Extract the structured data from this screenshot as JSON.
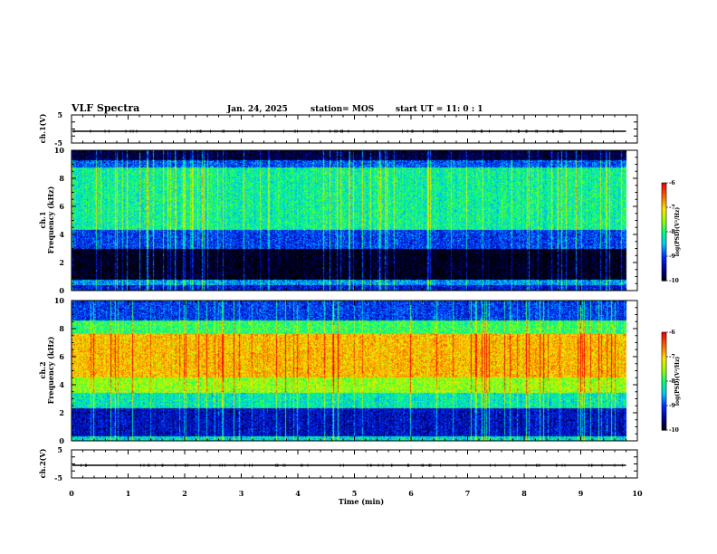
{
  "header": {
    "title": "VLF Spectra",
    "date": "Jan. 24, 2025",
    "station": "station= MOS",
    "start": "start  UT  =   11: 0  : 1"
  },
  "chart_data": [
    {
      "type": "line",
      "name": "ch1-voltage",
      "ylabel": "ch.1(V)",
      "ylim": [
        -5,
        5
      ],
      "yticks": [
        5,
        -5
      ],
      "xlim": [
        0,
        10
      ],
      "trace_level": -0.8,
      "trace_end_min": 9.8
    },
    {
      "type": "heatmap",
      "name": "ch1-spectrogram",
      "ylabel": "ch.1\nFrequency (kHz)",
      "ylabel_line1": "ch.1",
      "ylabel_line2": "Frequency (kHz)",
      "ylim": [
        0,
        10
      ],
      "yticks": [
        0,
        2,
        4,
        6,
        8,
        10
      ],
      "xlim": [
        0,
        10
      ],
      "data_end_min": 9.8,
      "bands": [
        {
          "from": 0,
          "to": 0.4,
          "level": -9.2
        },
        {
          "from": 0.4,
          "to": 0.8,
          "level": -8.6
        },
        {
          "from": 0.8,
          "to": 3.0,
          "level": -10.0
        },
        {
          "from": 3.0,
          "to": 4.3,
          "level": -9.0
        },
        {
          "from": 4.3,
          "to": 8.8,
          "level": -8.1
        },
        {
          "from": 8.8,
          "to": 9.3,
          "level": -8.9
        },
        {
          "from": 9.3,
          "to": 10.0,
          "level": -9.8
        }
      ],
      "colorbar": {
        "label": "log(PSD)(V²/Hz)",
        "min": -10,
        "max": -6,
        "ticks": [
          "-6",
          "-7",
          "-8",
          "-9",
          "-10"
        ]
      }
    },
    {
      "type": "heatmap",
      "name": "ch2-spectrogram",
      "ylabel": "ch.2\nFrequency (kHz)",
      "ylabel_line1": "ch.2",
      "ylabel_line2": "Frequency (kHz)",
      "ylim": [
        0,
        10
      ],
      "yticks": [
        0,
        2,
        4,
        6,
        8,
        10
      ],
      "xlim": [
        0,
        10
      ],
      "data_end_min": 9.8,
      "bands": [
        {
          "from": 0,
          "to": 0.3,
          "level": -8.3
        },
        {
          "from": 0.3,
          "to": 2.3,
          "level": -9.3
        },
        {
          "from": 2.3,
          "to": 3.4,
          "level": -8.2
        },
        {
          "from": 3.4,
          "to": 4.5,
          "level": -7.5
        },
        {
          "from": 4.5,
          "to": 7.6,
          "level": -6.9
        },
        {
          "from": 7.6,
          "to": 8.6,
          "level": -7.9
        },
        {
          "from": 8.6,
          "to": 10.0,
          "level": -9.0
        }
      ],
      "colorbar": {
        "label": "log(PSD)(V²/Hz)",
        "min": -10,
        "max": -6,
        "ticks": [
          "-6",
          "-7",
          "-8",
          "-9",
          "-10"
        ]
      }
    },
    {
      "type": "line",
      "name": "ch2-voltage",
      "ylabel": "ch.2(V)",
      "ylim": [
        -5,
        5
      ],
      "yticks": [
        5,
        -5
      ],
      "xlim": [
        0,
        10
      ],
      "trace_level": -0.5,
      "trace_end_min": 9.8
    }
  ],
  "xaxis": {
    "label": "Time  (min)",
    "ticks": [
      "0",
      "1",
      "2",
      "3",
      "4",
      "5",
      "6",
      "7",
      "8",
      "9",
      "10"
    ]
  }
}
